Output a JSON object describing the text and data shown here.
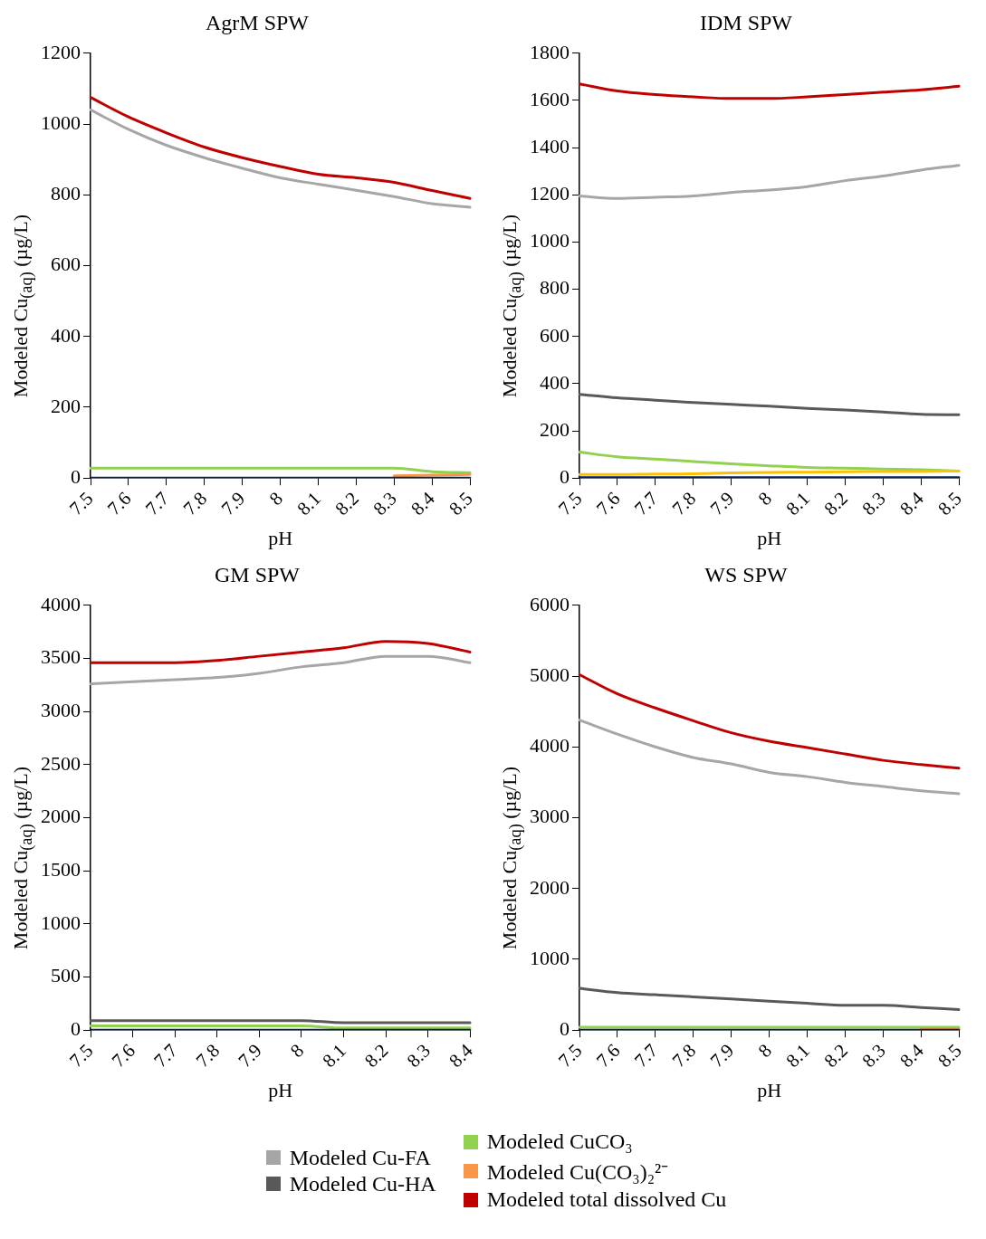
{
  "chart_data": [
    {
      "type": "line",
      "title": "AgrM SPW",
      "xlabel": "pH",
      "ylabel": "Modeled Cu$_{(aq)}$ (µg/L)",
      "categories": [
        "7.5",
        "7.6",
        "7.7",
        "7.8",
        "7.9",
        "8",
        "8.1",
        "8.2",
        "8.3",
        "8.4",
        "8.5"
      ],
      "ylim": [
        0,
        1200
      ],
      "yticks": [
        0,
        200,
        400,
        600,
        800,
        1000,
        1200
      ],
      "grid": false,
      "marker": "none",
      "line_style": "solid",
      "series": [
        {
          "color": "#a6a6a6",
          "values": [
            1040,
            985,
            940,
            905,
            875,
            848,
            830,
            813,
            795,
            775,
            765
          ]
        },
        {
          "color": "#595959",
          "values": [
            null,
            null,
            null,
            null,
            null,
            null,
            null,
            null,
            null,
            null,
            null
          ]
        },
        {
          "color": "#92d050",
          "values": [
            28,
            28,
            28,
            28,
            28,
            28,
            28,
            28,
            28,
            18,
            15
          ]
        },
        {
          "color": "#f79646",
          "values": [
            null,
            null,
            null,
            null,
            null,
            null,
            null,
            null,
            6,
            8,
            10
          ]
        },
        {
          "color": "#c00000",
          "values": [
            1075,
            1020,
            975,
            935,
            905,
            880,
            858,
            848,
            835,
            812,
            790
          ]
        },
        {
          "color": "#ffc000",
          "values": [
            null,
            null,
            null,
            null,
            null,
            null,
            null,
            null,
            null,
            null,
            null
          ]
        },
        {
          "color": "#002060",
          "values": [
            0,
            0,
            0,
            0,
            0,
            0,
            0,
            0,
            0,
            0,
            0
          ]
        }
      ]
    },
    {
      "type": "line",
      "title": "IDM SPW",
      "xlabel": "pH",
      "ylabel": "Modeled Cu$_{(aq)}$ (µg/L)",
      "categories": [
        "7.5",
        "7.6",
        "7.7",
        "7.8",
        "7.9",
        "8",
        "8.1",
        "8.2",
        "8.3",
        "8.4",
        "8.5"
      ],
      "ylim": [
        0,
        1800
      ],
      "yticks": [
        0,
        200,
        400,
        600,
        800,
        1000,
        1200,
        1400,
        1600,
        1800
      ],
      "grid": false,
      "marker": "none",
      "line_style": "solid",
      "series": [
        {
          "color": "#a6a6a6",
          "values": [
            1195,
            1185,
            1190,
            1195,
            1210,
            1220,
            1235,
            1260,
            1280,
            1305,
            1325
          ]
        },
        {
          "color": "#595959",
          "values": [
            355,
            340,
            330,
            320,
            312,
            305,
            295,
            288,
            280,
            270,
            268
          ]
        },
        {
          "color": "#92d050",
          "values": [
            110,
            90,
            80,
            70,
            60,
            52,
            45,
            42,
            38,
            35,
            30
          ]
        },
        {
          "color": "#f79646",
          "values": [
            null,
            null,
            null,
            null,
            null,
            null,
            null,
            null,
            null,
            null,
            null
          ]
        },
        {
          "color": "#c00000",
          "values": [
            1670,
            1640,
            1625,
            1615,
            1608,
            1608,
            1615,
            1625,
            1635,
            1645,
            1660
          ]
        },
        {
          "color": "#ffc000",
          "values": [
            15,
            15,
            17,
            18,
            22,
            24,
            25,
            27,
            28,
            28,
            30
          ]
        },
        {
          "color": "#002060",
          "values": [
            2,
            2,
            2,
            2,
            2,
            2,
            2,
            2,
            2,
            2,
            2
          ]
        }
      ]
    },
    {
      "type": "line",
      "title": "GM SPW",
      "xlabel": "pH",
      "ylabel": "Modeled Cu$_{(aq)}$ (µg/L)",
      "categories": [
        "7.5",
        "7.6",
        "7.7",
        "7.8",
        "7.9",
        "8",
        "8.1",
        "8.2",
        "8.3",
        "8.4"
      ],
      "ylim": [
        0,
        4000
      ],
      "yticks": [
        0,
        500,
        1000,
        1500,
        2000,
        2500,
        3000,
        3500,
        4000
      ],
      "grid": false,
      "marker": "none",
      "line_style": "solid",
      "series": [
        {
          "color": "#a6a6a6",
          "values": [
            3260,
            3280,
            3300,
            3320,
            3360,
            3420,
            3460,
            3520,
            3520,
            3460
          ]
        },
        {
          "color": "#595959",
          "values": [
            90,
            90,
            90,
            90,
            90,
            90,
            70,
            70,
            70,
            70
          ]
        },
        {
          "color": "#92d050",
          "values": [
            40,
            40,
            40,
            40,
            40,
            40,
            20,
            20,
            20,
            20
          ]
        },
        {
          "color": "#f79646",
          "values": [
            null,
            null,
            null,
            null,
            null,
            null,
            null,
            null,
            null,
            null
          ]
        },
        {
          "color": "#c00000",
          "values": [
            3460,
            3460,
            3460,
            3480,
            3520,
            3560,
            3600,
            3660,
            3640,
            3560
          ]
        },
        {
          "color": "#ffc000",
          "values": [
            null,
            null,
            null,
            null,
            null,
            null,
            null,
            null,
            null,
            null
          ]
        },
        {
          "color": "#002060",
          "values": [
            0,
            0,
            0,
            0,
            0,
            0,
            0,
            0,
            0,
            0
          ]
        }
      ]
    },
    {
      "type": "line",
      "title": "WS SPW",
      "xlabel": "pH",
      "ylabel": "Modeled Cu$_{(aq)}$ (µg/L)",
      "categories": [
        "7.5",
        "7.6",
        "7.7",
        "7.8",
        "7.9",
        "8",
        "8.1",
        "8.2",
        "8.3",
        "8.4",
        "8.5"
      ],
      "ylim": [
        0,
        6000
      ],
      "yticks": [
        0,
        1000,
        2000,
        3000,
        4000,
        5000,
        6000
      ],
      "grid": false,
      "legend": "bottom",
      "marker": "none",
      "line_style": "solid",
      "series": [
        {
          "name": "Modeled Cu-FA",
          "color": "#a6a6a6",
          "values": [
            4380,
            4180,
            4000,
            3850,
            3760,
            3640,
            3580,
            3500,
            3440,
            3380,
            3340
          ]
        },
        {
          "name": "Modeled Cu-HA",
          "color": "#595959",
          "values": [
            590,
            530,
            500,
            470,
            440,
            410,
            380,
            350,
            350,
            320,
            290
          ]
        },
        {
          "name": "Modeled CuCO₃",
          "color": "#92d050",
          "values": [
            40,
            40,
            40,
            40,
            40,
            40,
            40,
            40,
            40,
            40,
            40
          ]
        },
        {
          "name": "Modeled Cu(CO₃)₂²⁻",
          "color": "#f79646",
          "values": [
            null,
            null,
            null,
            null,
            null,
            null,
            null,
            null,
            null,
            20,
            20
          ]
        },
        {
          "name": "Modeled total dissolved Cu",
          "color": "#c00000",
          "values": [
            5020,
            4750,
            4550,
            4370,
            4200,
            4080,
            3990,
            3900,
            3810,
            3750,
            3700
          ]
        },
        {
          "color": "#ffc000",
          "values": [
            null,
            null,
            null,
            null,
            null,
            null,
            null,
            null,
            null,
            null,
            null
          ]
        },
        {
          "color": "#002060",
          "values": [
            0,
            0,
            0,
            0,
            0,
            0,
            0,
            0,
            0,
            0,
            0
          ]
        }
      ]
    }
  ]
}
